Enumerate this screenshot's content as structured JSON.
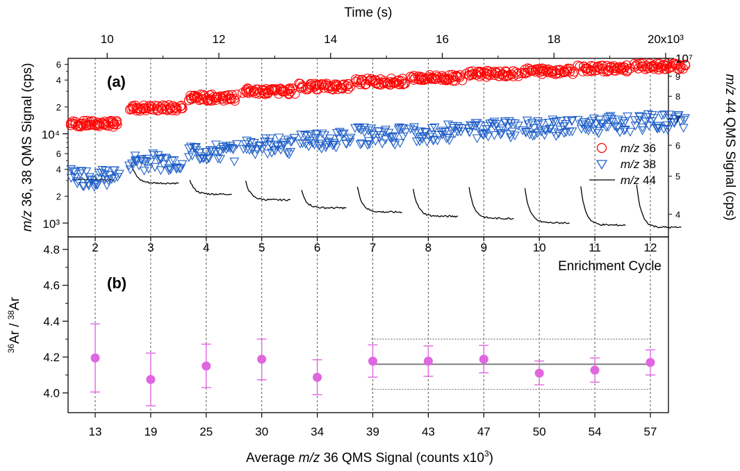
{
  "chart_data": [
    {
      "panel_label": "(a)",
      "type": "scatter",
      "top_axis": {
        "label": "Time (s)",
        "ticks": [
          10,
          12,
          14,
          16,
          18,
          20
        ],
        "tick_labels": [
          "10",
          "12",
          "14",
          "16",
          "18",
          "20x10³"
        ],
        "xlim": [
          9.3,
          20.05
        ]
      },
      "enrichment_axis": {
        "label": "Enrichment Cycle",
        "cycles": [
          2,
          3,
          4,
          5,
          6,
          7,
          8,
          9,
          10,
          11,
          12
        ]
      },
      "left_axis": {
        "label_italic": "m/z",
        "label_rest": " 36, 38 QMS Signal (cps)",
        "scale": "log",
        "ylim": [
          700,
          70000
        ],
        "major_ticks": [
          1000,
          10000
        ],
        "major_labels": [
          "10³",
          "10⁴"
        ],
        "minor_ticks": [
          2000,
          4000,
          6000,
          20000,
          40000,
          60000
        ],
        "minor_labels": [
          "2",
          "4",
          "6",
          "2",
          "4",
          "6"
        ]
      },
      "right_axis": {
        "label_italic": "m/z",
        "label_rest": " 44 QMS Signal (cps)",
        "scale": "log",
        "ylim": [
          3500000,
          10000000
        ],
        "top_label": "10⁷",
        "ticks": [
          4000000,
          5000000,
          6000000,
          7000000,
          8000000,
          9000000
        ],
        "tick_labels": [
          "4",
          "5",
          "6",
          "7",
          "8",
          "9"
        ]
      },
      "legend": {
        "placement": "right",
        "entries": [
          {
            "italic": "m/z",
            "rest": " 36",
            "marker": "circle",
            "color": "#ff0000"
          },
          {
            "italic": "m/z",
            "rest": " 38",
            "marker": "triangle-down",
            "color": "#1f5fc8"
          },
          {
            "italic": "m/z",
            "rest": " 44",
            "marker": "line",
            "color": "#000000"
          }
        ]
      },
      "groups": [
        {
          "cycle": 2,
          "t_start": 9.35,
          "t_end": 10.2,
          "mz36": 13000,
          "mz38": 3300,
          "mz44_start": 4900000,
          "mz44_end": 4900000
        },
        {
          "cycle": 3,
          "t_start": 10.4,
          "t_end": 11.35,
          "mz36": 19500,
          "mz38": 5000,
          "mz44_start": 5400000,
          "mz44_end": 4800000
        },
        {
          "cycle": 4,
          "t_start": 11.45,
          "t_end": 12.3,
          "mz36": 25500,
          "mz38": 6300,
          "mz44_start": 4900000,
          "mz44_end": 4500000
        },
        {
          "cycle": 5,
          "t_start": 12.45,
          "t_end": 13.35,
          "mz36": 30000,
          "mz38": 7500,
          "mz44_start": 4850000,
          "mz44_end": 4350000
        },
        {
          "cycle": 6,
          "t_start": 13.45,
          "t_end": 14.35,
          "mz36": 34000,
          "mz38": 8800,
          "mz44_start": 4600000,
          "mz44_end": 4150000
        },
        {
          "cycle": 7,
          "t_start": 14.45,
          "t_end": 15.35,
          "mz36": 38500,
          "mz38": 9700,
          "mz44_start": 4700000,
          "mz44_end": 4050000
        },
        {
          "cycle": 8,
          "t_start": 15.45,
          "t_end": 16.35,
          "mz36": 42500,
          "mz38": 10500,
          "mz44_start": 4650000,
          "mz44_end": 3950000
        },
        {
          "cycle": 9,
          "t_start": 16.45,
          "t_end": 17.35,
          "mz36": 47000,
          "mz38": 11500,
          "mz44_start": 4700000,
          "mz44_end": 3900000
        },
        {
          "cycle": 10,
          "t_start": 17.45,
          "t_end": 18.35,
          "mz36": 50500,
          "mz38": 12200,
          "mz44_start": 4650000,
          "mz44_end": 3800000
        },
        {
          "cycle": 11,
          "t_start": 18.45,
          "t_end": 19.35,
          "mz36": 54000,
          "mz38": 13000,
          "mz44_start": 4700000,
          "mz44_end": 3750000
        },
        {
          "cycle": 12,
          "t_start": 19.45,
          "t_end": 20.35,
          "mz36": 57000,
          "mz38": 13700,
          "mz44_start": 4750000,
          "mz44_end": 3700000
        }
      ]
    },
    {
      "panel_label": "(b)",
      "type": "scatter",
      "ylabel": {
        "sup1": "36",
        "base1": "Ar / ",
        "sup2": "38",
        "base2": "Ar"
      },
      "xlabel": {
        "pre": "Average ",
        "italic": "m/z",
        "mid": " 36 QMS Signal (counts x10",
        "sup": "3",
        "post": ")"
      },
      "ylim": [
        3.89,
        4.87
      ],
      "yticks": [
        4.0,
        4.2,
        4.4,
        4.6,
        4.8
      ],
      "ytick_labels": [
        "4.0",
        "4.2",
        "4.4",
        "4.6",
        "4.8"
      ],
      "categories": [
        "13",
        "19",
        "25",
        "30",
        "34",
        "39",
        "43",
        "47",
        "50",
        "54",
        "57"
      ],
      "values": [
        4.195,
        4.075,
        4.15,
        4.188,
        4.087,
        4.177,
        4.177,
        4.188,
        4.11,
        4.127,
        4.17
      ],
      "err_low": [
        4.005,
        3.928,
        4.03,
        4.073,
        3.99,
        4.088,
        4.093,
        4.112,
        4.045,
        4.06,
        4.1
      ],
      "err_high": [
        4.385,
        4.222,
        4.272,
        4.3,
        4.185,
        4.268,
        4.262,
        4.265,
        4.178,
        4.195,
        4.24
      ],
      "color": "#e066e0",
      "mean": 4.16,
      "band": [
        4.02,
        4.3
      ],
      "mean_span_from_index": 5
    }
  ]
}
